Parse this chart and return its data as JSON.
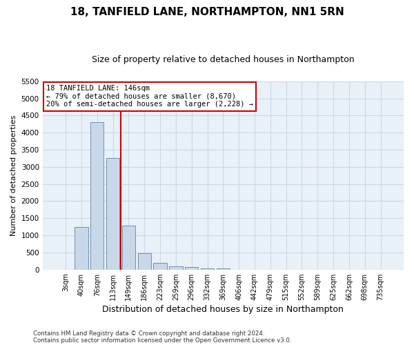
{
  "title": "18, TANFIELD LANE, NORTHAMPTON, NN1 5RN",
  "subtitle": "Size of property relative to detached houses in Northampton",
  "xlabel": "Distribution of detached houses by size in Northampton",
  "ylabel": "Number of detached properties",
  "footnote1": "Contains HM Land Registry data © Crown copyright and database right 2024.",
  "footnote2": "Contains public sector information licensed under the Open Government Licence v3.0.",
  "bar_labels": [
    "3sqm",
    "40sqm",
    "76sqm",
    "113sqm",
    "149sqm",
    "186sqm",
    "223sqm",
    "259sqm",
    "296sqm",
    "332sqm",
    "369sqm",
    "406sqm",
    "442sqm",
    "479sqm",
    "515sqm",
    "552sqm",
    "589sqm",
    "625sqm",
    "662sqm",
    "698sqm",
    "735sqm"
  ],
  "bar_values": [
    0,
    1250,
    4300,
    3250,
    1280,
    470,
    190,
    90,
    70,
    40,
    30,
    0,
    0,
    0,
    0,
    0,
    0,
    0,
    0,
    0,
    0
  ],
  "bar_color": "#c8d8e8",
  "bar_edge_color": "#7090b0",
  "property_line_color": "#cc0000",
  "property_line_x": 3.5,
  "annotation_line1": "18 TANFIELD LANE: 146sqm",
  "annotation_line2": "← 79% of detached houses are smaller (8,670)",
  "annotation_line3": "20% of semi-detached houses are larger (2,228) →",
  "annotation_box_color": "#cc0000",
  "ylim": [
    0,
    5500
  ],
  "yticks": [
    0,
    500,
    1000,
    1500,
    2000,
    2500,
    3000,
    3500,
    4000,
    4500,
    5000,
    5500
  ],
  "grid_color": "#c8d8e8",
  "bg_color": "#e8f0f8",
  "title_fontsize": 11,
  "subtitle_fontsize": 9,
  "tick_fontsize": 7,
  "ylabel_fontsize": 8,
  "xlabel_fontsize": 9
}
